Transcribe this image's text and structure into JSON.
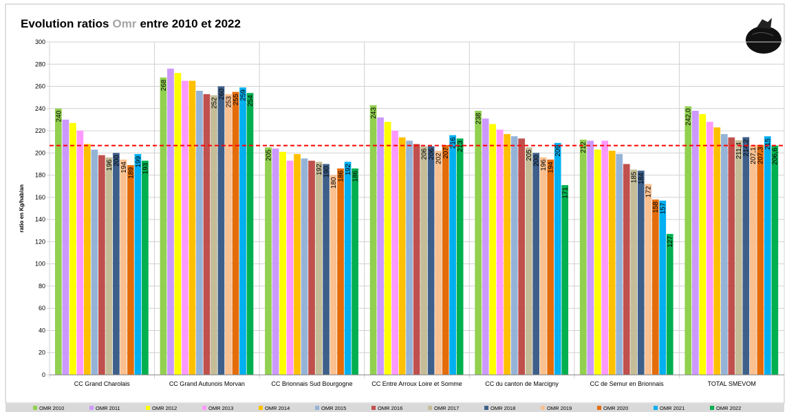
{
  "chart_data": {
    "type": "bar",
    "title_parts": [
      "Evolution ratios",
      "Omr",
      "entre 2010 et 2022"
    ],
    "title_colors": [
      "#000000",
      "#a6a6a6",
      "#000000"
    ],
    "ylabel": "ratio en Kg/hab/an",
    "categories": [
      "CC Grand Charolais",
      "CC Grand Autunois Morvan",
      "CC Brionnais Sud Bourgogne",
      "CC Entre Arroux Loire et Somme",
      "CC du canton de Marcigny",
      "CC de Semur en Brionnais",
      "TOTAL SMEVOM"
    ],
    "ylim": [
      0,
      300
    ],
    "yticks": [
      0,
      20,
      40,
      60,
      80,
      100,
      120,
      140,
      160,
      180,
      200,
      220,
      240,
      260,
      280,
      300
    ],
    "grid": true,
    "legend": "bottom",
    "reference_line": {
      "value": 206.6,
      "color": "#ff0000"
    },
    "series": [
      {
        "name": "OMR 2010",
        "color": "#92d050",
        "values": [
          240,
          268,
          205,
          243,
          238,
          212,
          242.0
        ],
        "value_labels": [
          "240",
          "268",
          "205",
          "243",
          "238",
          "212",
          "242,0"
        ]
      },
      {
        "name": "OMR 2011",
        "color": "#cc99ff",
        "values": [
          230,
          276,
          204,
          232,
          231,
          211,
          238
        ]
      },
      {
        "name": "OMR 2012",
        "color": "#ffff00",
        "values": [
          227,
          272,
          201,
          228,
          226,
          203,
          235
        ]
      },
      {
        "name": "OMR 2013",
        "color": "#ff99ff",
        "values": [
          220,
          265,
          193,
          220,
          221,
          211,
          228
        ]
      },
      {
        "name": "OMR 2014",
        "color": "#ffc000",
        "values": [
          208,
          265,
          199,
          214,
          217,
          202,
          223
        ]
      },
      {
        "name": "OMR 2015",
        "color": "#95b3d7",
        "values": [
          203,
          256,
          195,
          211,
          215,
          199,
          217
        ]
      },
      {
        "name": "OMR 2016",
        "color": "#c0504d",
        "values": [
          198,
          253,
          193,
          208,
          213,
          190,
          214
        ]
      },
      {
        "name": "OMR 2017",
        "color": "#c4bd97",
        "values": [
          196,
          252,
          192,
          206,
          205,
          185,
          211.4
        ],
        "value_labels": [
          "196",
          "252",
          "192",
          "206",
          "205",
          "185",
          "211,4"
        ]
      },
      {
        "name": "OMR 2018",
        "color": "#3e5f8a",
        "values": [
          200,
          260,
          190,
          206,
          200,
          184,
          214.2
        ],
        "value_labels": [
          "200",
          "260",
          "190",
          "206",
          "200",
          "184",
          "214,2"
        ]
      },
      {
        "name": "OMR 2019",
        "color": "#fac090",
        "values": [
          194,
          253,
          180,
          202,
          196,
          172,
          207.1
        ],
        "value_labels": [
          "194",
          "253",
          "180",
          "202",
          "196",
          "172",
          "207,1"
        ]
      },
      {
        "name": "OMR 2020",
        "color": "#e46c0a",
        "values": [
          189,
          255,
          186,
          207,
          194,
          158,
          207.3
        ],
        "value_labels": [
          "189",
          "255",
          "186",
          "207",
          "194",
          "158",
          "207,3"
        ]
      },
      {
        "name": "OMR 2021",
        "color": "#00b0f0",
        "values": [
          199,
          259,
          192,
          216,
          209,
          157,
          215
        ],
        "value_labels": [
          "199",
          "259",
          "192",
          "216",
          "209",
          "157",
          "215"
        ]
      },
      {
        "name": "OMR 2022",
        "color": "#00b050",
        "values": [
          193,
          254,
          186,
          213,
          171,
          127,
          206.6
        ],
        "value_labels": [
          "193",
          "254",
          "186",
          "213",
          "171",
          "127",
          "206,6"
        ]
      }
    ]
  }
}
